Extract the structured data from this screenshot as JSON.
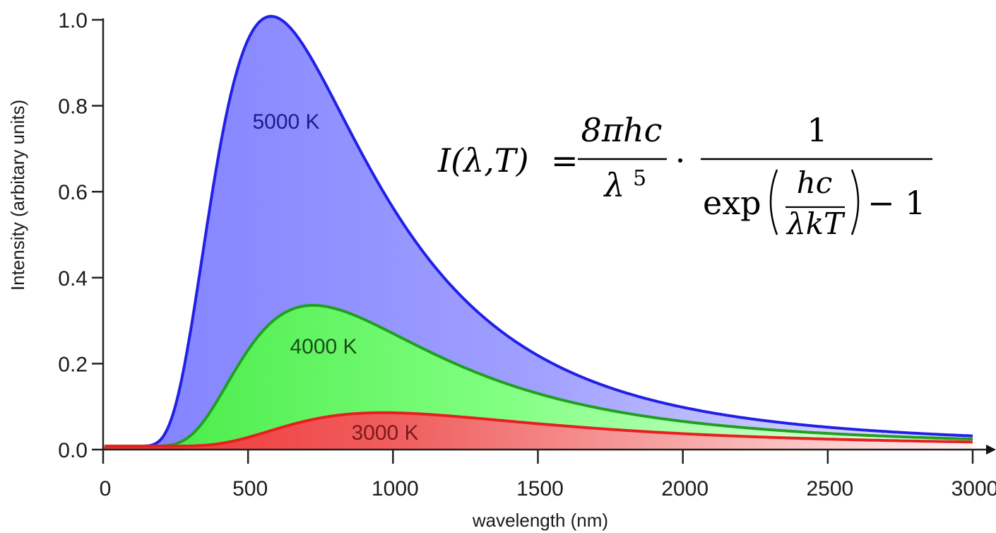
{
  "chart_data": {
    "type": "area",
    "title": "",
    "xlabel": "wavelength (nm)",
    "ylabel": "Intensity (arbitary units)",
    "xlim": [
      0,
      3000
    ],
    "ylim": [
      0,
      1.0
    ],
    "xticks": [
      "0",
      "500",
      "1000",
      "1500",
      "2000",
      "2500",
      "3000"
    ],
    "yticks": [
      "0.0",
      "0.2",
      "0.4",
      "0.6",
      "0.8",
      "1.0"
    ],
    "grid": false,
    "legend": "none",
    "series": [
      {
        "name": "5000 K",
        "temperature_K": 5000,
        "color": "#2020e6",
        "fill": "#8c8cff",
        "peak": {
          "x": 580,
          "y": 1.0
        }
      },
      {
        "name": "4000 K",
        "temperature_K": 4000,
        "color": "#1fa01f",
        "fill": "#5cf05c",
        "peak": {
          "x": 725,
          "y": 0.335
        }
      },
      {
        "name": "3000 K",
        "temperature_K": 3000,
        "color": "#e62020",
        "fill": "#f05050",
        "peak": {
          "x": 966,
          "y": 0.08
        }
      }
    ],
    "annotation": "I(λ,T) = 8πhc/λ⁵ · 1/(exp(hc/λkT) − 1)"
  },
  "formula": {
    "lhs": "I(λ,T)",
    "eq": "=",
    "num1": "8πhc",
    "den1": "λ",
    "den1_exp": "5",
    "dot": "·",
    "num2": "1",
    "exp_word": "exp",
    "inner_num": "hc",
    "inner_den": "λkT",
    "minus_one": "− 1"
  }
}
